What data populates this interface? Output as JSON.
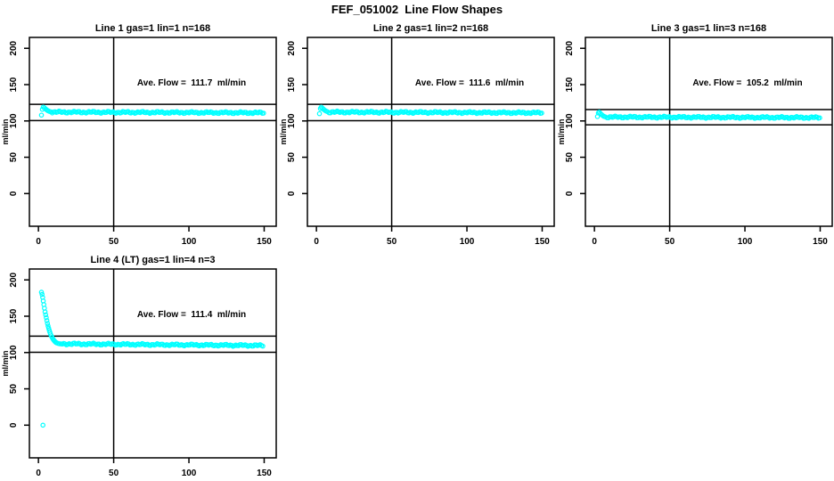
{
  "page_title": "FEF_051002  Line Flow Shapes",
  "colors": {
    "point": "#00FFFF",
    "axis": "#000000",
    "background": "#FFFFFF",
    "text": "#000000"
  },
  "chart_data": [
    {
      "type": "scatter",
      "title": "Line 1 gas=1 lin=1 n=168",
      "annotation": "Ave. Flow =  111.7  ml/min",
      "ave_flow_ml_min": 111.7,
      "ylabel": "ml/min",
      "xticks": [
        0,
        50,
        100,
        150
      ],
      "yticks": [
        0,
        50,
        100,
        150,
        200
      ],
      "xlim": [
        -6,
        158
      ],
      "ylim": [
        -45,
        215
      ],
      "vline_x": 50,
      "hlines": [
        122.9,
        100.5
      ],
      "grid": false,
      "series": {
        "name": "line1-flow",
        "transient": [
          [
            2,
            108
          ],
          [
            2.6,
            116
          ],
          [
            3.2,
            119
          ],
          [
            4,
            118
          ],
          [
            4.8,
            116.5
          ],
          [
            5.6,
            115
          ],
          [
            6.4,
            114
          ],
          [
            7.2,
            113.2
          ],
          [
            8.2,
            112.6
          ]
        ],
        "steady": {
          "from": 9.2,
          "to": 150,
          "step": 0.9,
          "y_start": 112.2,
          "y_end": 111.2
        },
        "outliers": []
      }
    },
    {
      "type": "scatter",
      "title": "Line 2 gas=1 lin=2 n=168",
      "annotation": "Ave. Flow =  111.6  ml/min",
      "ave_flow_ml_min": 111.6,
      "ylabel": "ml/min",
      "xticks": [
        0,
        50,
        100,
        150
      ],
      "yticks": [
        0,
        50,
        100,
        150,
        200
      ],
      "xlim": [
        -6,
        158
      ],
      "ylim": [
        -45,
        215
      ],
      "vline_x": 50,
      "hlines": [
        122.8,
        100.4
      ],
      "grid": false,
      "series": {
        "name": "line2-flow",
        "transient": [
          [
            2,
            110
          ],
          [
            2.6,
            117
          ],
          [
            3.2,
            119
          ],
          [
            4,
            117.5
          ],
          [
            4.8,
            116
          ],
          [
            5.6,
            114.6
          ],
          [
            6.4,
            113.6
          ],
          [
            7.2,
            112.9
          ]
        ],
        "steady": {
          "from": 8.4,
          "to": 150,
          "step": 0.9,
          "y_start": 112.2,
          "y_end": 111.2
        },
        "outliers": []
      }
    },
    {
      "type": "scatter",
      "title": "Line 3 gas=1 lin=3 n=168",
      "annotation": "Ave. Flow =  105.2  ml/min",
      "ave_flow_ml_min": 105.2,
      "ylabel": "ml/min",
      "xticks": [
        0,
        50,
        100,
        150
      ],
      "yticks": [
        0,
        50,
        100,
        150,
        200
      ],
      "xlim": [
        -6,
        158
      ],
      "ylim": [
        -45,
        215
      ],
      "vline_x": 50,
      "hlines": [
        115.7,
        94.7
      ],
      "grid": false,
      "series": {
        "name": "line3-flow",
        "transient": [
          [
            2,
            106
          ],
          [
            2.6,
            111
          ],
          [
            3.2,
            112
          ],
          [
            4,
            110.2
          ],
          [
            4.8,
            108.6
          ],
          [
            5.6,
            107.2
          ],
          [
            6.4,
            106.2
          ],
          [
            7.2,
            105.6
          ]
        ],
        "steady": {
          "from": 8.4,
          "to": 150,
          "step": 0.9,
          "y_start": 105.4,
          "y_end": 104.6
        },
        "outliers": []
      }
    },
    {
      "type": "scatter",
      "title": "Line 4 (LT) gas=1 lin=4 n=3",
      "annotation": "Ave. Flow =  111.4  ml/min",
      "ave_flow_ml_min": 111.4,
      "ylabel": "ml/min",
      "xticks": [
        0,
        50,
        100,
        150
      ],
      "yticks": [
        0,
        50,
        100,
        150,
        200
      ],
      "xlim": [
        -6,
        158
      ],
      "ylim": [
        -45,
        215
      ],
      "vline_x": 50,
      "hlines": [
        122.5,
        100.3
      ],
      "grid": false,
      "series": {
        "name": "line4-flow",
        "transient": [
          [
            2,
            183
          ],
          [
            2.4,
            180
          ],
          [
            2.8,
            176
          ],
          [
            3.2,
            171
          ],
          [
            3.6,
            166
          ],
          [
            4,
            161
          ],
          [
            4.4,
            156
          ],
          [
            4.8,
            152
          ],
          [
            5.2,
            148
          ],
          [
            5.6,
            144
          ],
          [
            6,
            140
          ],
          [
            6.4,
            136.5
          ],
          [
            6.8,
            133.5
          ],
          [
            7.2,
            130.5
          ],
          [
            7.6,
            128
          ],
          [
            8,
            125.5
          ],
          [
            8.5,
            123
          ],
          [
            9,
            121
          ],
          [
            9.5,
            119.2
          ],
          [
            10,
            117.6
          ],
          [
            10.5,
            116.2
          ],
          [
            11,
            115
          ],
          [
            11.5,
            114.1
          ],
          [
            12,
            113.4
          ],
          [
            13,
            112.6
          ],
          [
            14,
            112.1
          ]
        ],
        "steady": {
          "from": 15,
          "to": 150,
          "step": 0.9,
          "y_start": 112,
          "y_end": 109.6
        },
        "outliers": [
          [
            3,
            0
          ]
        ]
      }
    }
  ]
}
